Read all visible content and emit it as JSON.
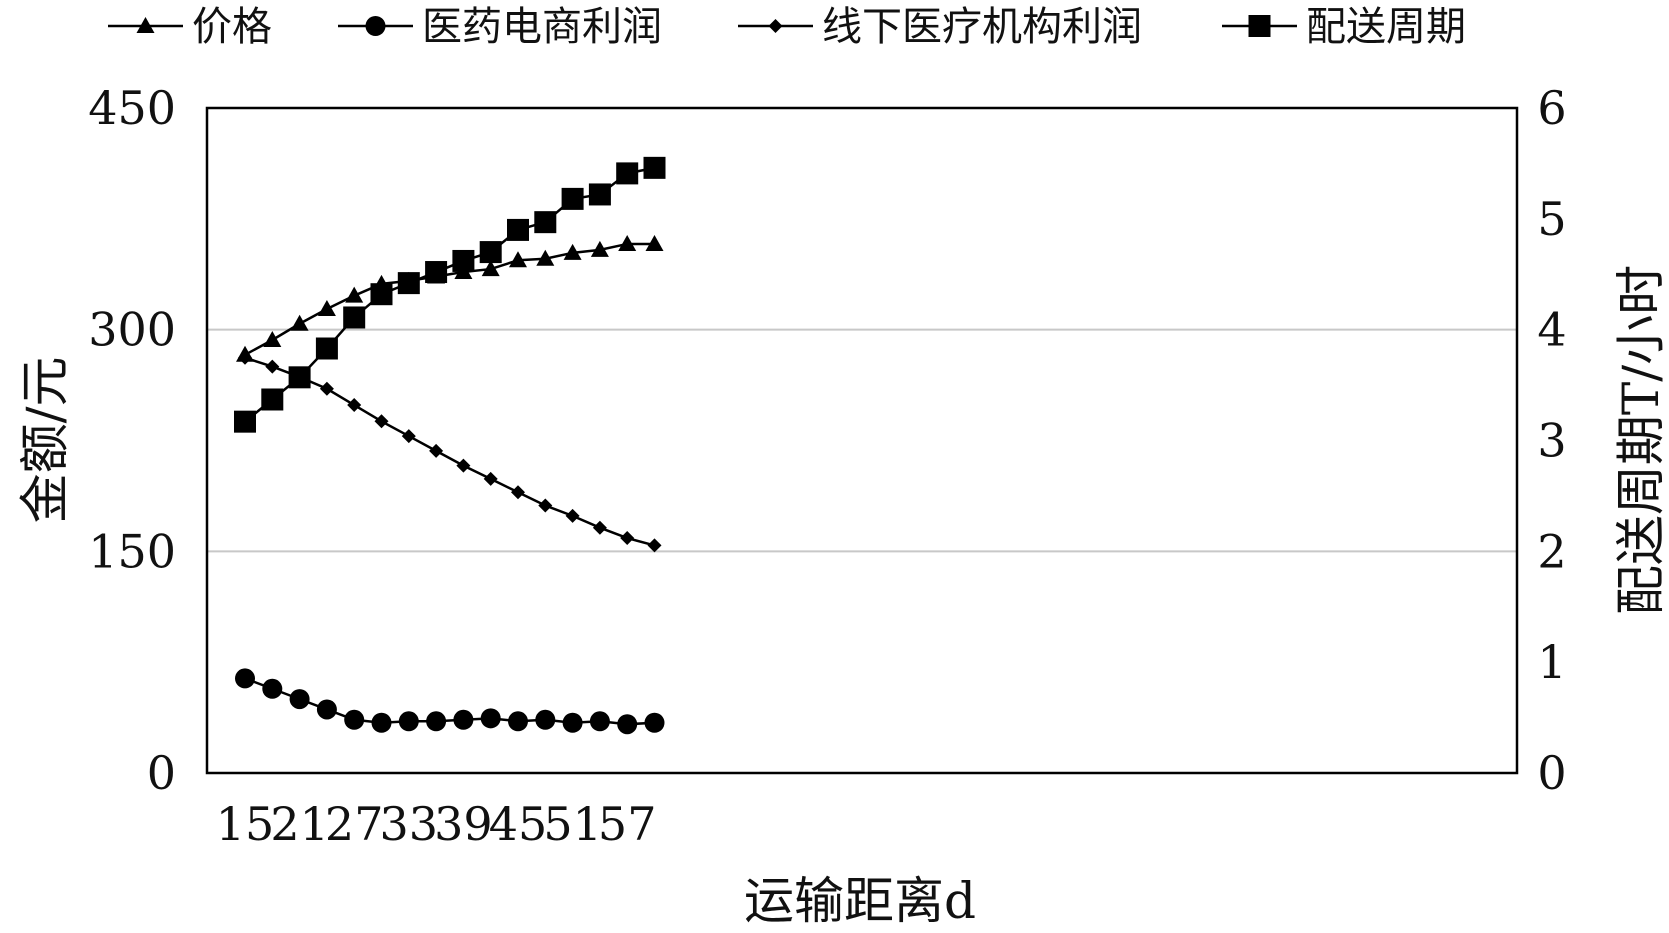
{
  "chart_data": {
    "type": "line",
    "x": [
      15,
      18,
      21,
      24,
      27,
      30,
      33,
      36,
      39,
      42,
      45,
      48,
      51,
      54,
      57,
      60
    ],
    "x_ticks": [
      15,
      21,
      27,
      33,
      39,
      45,
      51,
      57
    ],
    "xlim": [
      15,
      60
    ],
    "xlabel": "运输距离d",
    "ylabel_left": "金额/元",
    "ylabel_right": "配送周期T/小时",
    "ylim_left": [
      0,
      450
    ],
    "yticks_left": [
      0,
      150,
      300,
      450
    ],
    "ylim_right": [
      0,
      6
    ],
    "yticks_right": [
      0,
      1,
      2,
      3,
      4,
      5,
      6
    ],
    "grid": "horizontal at 150 and 300",
    "legend_position": "top",
    "series": [
      {
        "name": "价格",
        "axis": "left",
        "marker": "triangle",
        "values": [
          283,
          293,
          304,
          314,
          323,
          331,
          333,
          336,
          339,
          341,
          347,
          348,
          352,
          354,
          358,
          358
        ]
      },
      {
        "name": "医药电商利润",
        "axis": "left",
        "marker": "circle",
        "values": [
          64,
          57,
          50,
          43,
          36,
          34,
          35,
          35,
          36,
          37,
          35,
          36,
          34,
          35,
          33,
          34
        ]
      },
      {
        "name": "线下医疗机构利润",
        "axis": "left",
        "marker": "small-diamond",
        "values": [
          281,
          275,
          268,
          260,
          249,
          238,
          228,
          218,
          208,
          199,
          190,
          181,
          174,
          166,
          159,
          154
        ]
      },
      {
        "name": "配送周期",
        "axis": "right",
        "marker": "square",
        "values": [
          3.17,
          3.37,
          3.57,
          3.83,
          4.11,
          4.32,
          4.42,
          4.52,
          4.62,
          4.7,
          4.9,
          4.97,
          5.18,
          5.22,
          5.41,
          5.46
        ]
      }
    ]
  }
}
